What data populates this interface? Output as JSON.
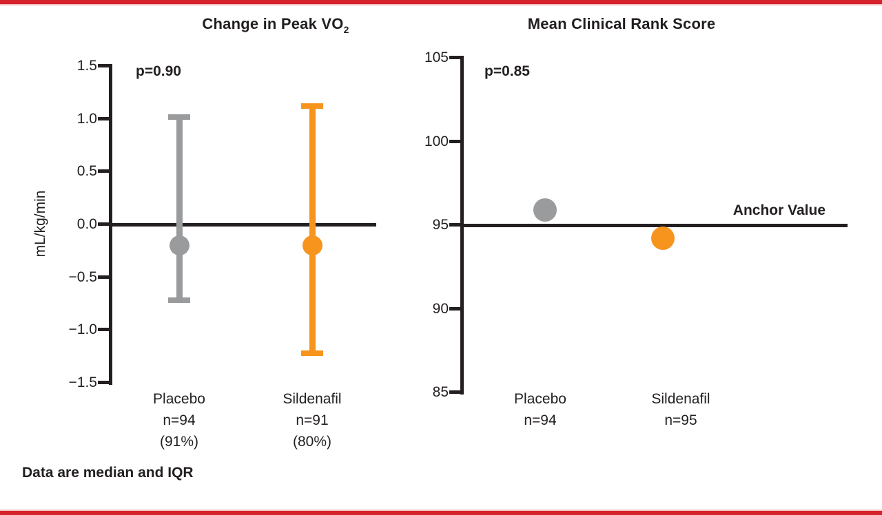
{
  "figure": {
    "footnote": "Data are median and IQR",
    "accent_red": "#d5222b",
    "line_black": "#231f20",
    "background": "#ffffff"
  },
  "chart_data": [
    {
      "type": "scatter",
      "title": "Change in Peak VO",
      "title_sub": "2",
      "p_value": "p=0.90",
      "ylabel": "mL/kg/min",
      "ylim": [
        -1.5,
        1.5
      ],
      "yticks": [
        1.5,
        1.0,
        0.5,
        0.0,
        -0.5,
        -1.0,
        -1.5
      ],
      "ytick_labels": [
        "1.5",
        "1.0",
        "0.5",
        "0.0",
        "−0.5",
        "−1.0",
        "−1.5"
      ],
      "baseline_value": 0.0,
      "grid": false,
      "legend": false,
      "note": "Data are median and IQR",
      "series": [
        {
          "name": "Placebo",
          "n_label": "n=94",
          "pct_label": "(91%)",
          "color": "#9a9b9d",
          "median": -0.2,
          "iqr_low": -0.7,
          "iqr_high": 1.0
        },
        {
          "name": "Sildenafil",
          "n_label": "n=91",
          "pct_label": "(80%)",
          "color": "#f7941e",
          "median": -0.2,
          "iqr_low": -1.2,
          "iqr_high": 1.1
        }
      ]
    },
    {
      "type": "scatter",
      "title": "Mean Clinical Rank Score",
      "p_value": "p=0.85",
      "ylabel": "",
      "ylim": [
        85,
        105
      ],
      "yticks": [
        105,
        100,
        95,
        90,
        85
      ],
      "ytick_labels": [
        "105",
        "100",
        "95",
        "90",
        "85"
      ],
      "baseline_value": 95,
      "baseline_label": "Anchor Value",
      "grid": false,
      "legend": false,
      "series": [
        {
          "name": "Placebo",
          "n_label": "n=94",
          "color": "#9a9b9d",
          "mean": 95.9
        },
        {
          "name": "Sildenafil",
          "n_label": "n=95",
          "color": "#f7941e",
          "mean": 94.2
        }
      ]
    }
  ]
}
